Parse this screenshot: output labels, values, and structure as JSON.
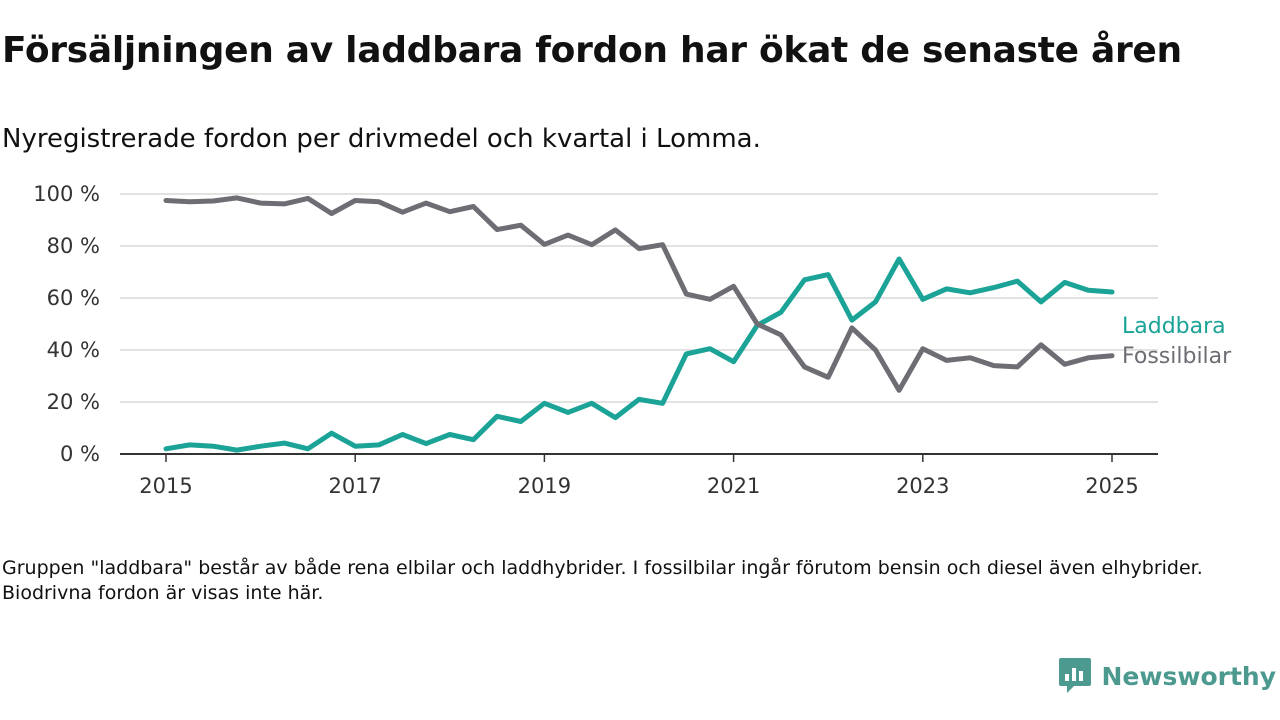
{
  "title": "Försäljningen av laddbara fordon har ökat de senaste åren",
  "subtitle": "Nyregistrerade fordon per drivmedel och kvartal i Lomma.",
  "footnote": "Gruppen \"laddbara\" består av både rena elbilar och laddhybrider. I fossilbilar ingår förutom bensin och diesel även elhybrider. Biodrivna fordon är visas inte här.",
  "brand": {
    "name": "Newsworthy",
    "icon": "newsworthy-logo-icon",
    "color": "#4c9a8f"
  },
  "chart_data": {
    "type": "line",
    "title": "Försäljningen av laddbara fordon har ökat de senaste åren",
    "subtitle": "Nyregistrerade fordon per drivmedel och kvartal i Lomma.",
    "x_start": 2015,
    "x_step": 0.25,
    "xlim": [
      2014.5,
      2025.5
    ],
    "ylim": [
      0,
      100
    ],
    "x_ticks": [
      2015,
      2017,
      2019,
      2021,
      2023,
      2025
    ],
    "y_ticks": [
      0,
      20,
      40,
      60,
      80,
      100
    ],
    "y_tick_labels": [
      "0 %",
      "20 %",
      "40 %",
      "60 %",
      "80 %",
      "100 %"
    ],
    "grid": "horizontal",
    "legend": "direct labels at line ends, right",
    "series": [
      {
        "name": "Laddbara",
        "color": "#1aa396",
        "values": [
          2,
          3.5,
          3,
          1.5,
          3,
          4.2,
          2,
          8,
          3,
          3.5,
          7.5,
          4,
          7.5,
          5.5,
          14.5,
          12.5,
          19.5,
          16,
          19.5,
          14,
          21,
          19.5,
          38.5,
          40.5,
          35.5,
          49.5,
          54.5,
          67,
          69,
          51.5,
          58.5,
          75,
          59.5,
          63.5,
          62,
          64,
          66.5,
          58.5,
          66,
          63,
          62.3
        ]
      },
      {
        "name": "Fossilbilar",
        "color": "#6e6d74",
        "values": [
          97.5,
          97,
          97.3,
          98.5,
          96.5,
          96.2,
          98.3,
          92.5,
          97.5,
          97,
          93,
          96.5,
          93.2,
          95.2,
          86.3,
          88,
          80.6,
          84.2,
          80.5,
          86.2,
          79,
          80.5,
          61.5,
          59.5,
          64.5,
          50,
          45.8,
          33.5,
          29.5,
          48.5,
          40,
          24.5,
          40.5,
          36,
          37,
          34,
          33.5,
          42,
          34.5,
          37,
          37.8
        ]
      }
    ]
  }
}
